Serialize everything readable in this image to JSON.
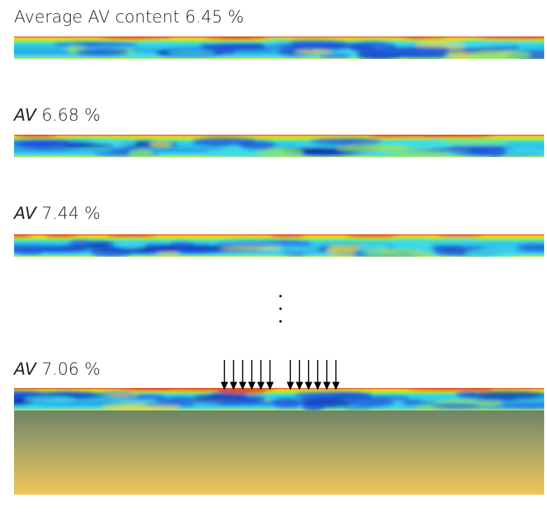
{
  "panels": [
    {
      "label": "Average AV content 6.45 %"
    },
    {
      "label_italic": "AV",
      "label": "6.68 %"
    },
    {
      "label_italic": "AV",
      "label": "7.44 %"
    },
    {
      "label_italic": "AV",
      "label": "7.06 %"
    }
  ]
}
